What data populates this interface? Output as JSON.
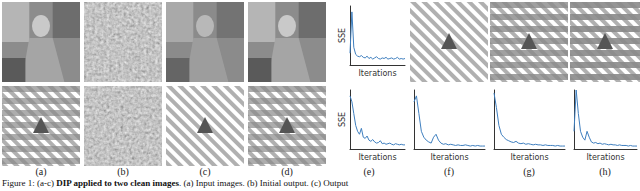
{
  "panel_labels": [
    "(a)",
    "(b)",
    "(c)",
    "(d)",
    "(e)",
    "(f)",
    "(g)",
    "(h)"
  ],
  "caption": {
    "lead": "Figure 1: (a-c) ",
    "bold": "DIP applied to two clean images",
    "rest": ". (a) Input images. (b) Initial output. (c) Output"
  },
  "chart_data": [
    {
      "type": "line",
      "xlabel": "Iterations",
      "ylabel": "SSE",
      "color": "#3f7fbf",
      "line_style": "solid",
      "tick_labels": false,
      "xlim": [
        0,
        29
      ],
      "ylim": [
        0,
        10
      ],
      "x": [
        0,
        1,
        2,
        3,
        4,
        5,
        6,
        7,
        8,
        9,
        10,
        11,
        12,
        13,
        14,
        15,
        16,
        17,
        18,
        19,
        20,
        21,
        22,
        23,
        24,
        25,
        26,
        27,
        28,
        29
      ],
      "values": [
        2,
        9,
        3,
        1.8,
        1.5,
        1.4,
        1.6,
        1.3,
        1.2,
        1.5,
        1.1,
        1.3,
        1.0,
        1.2,
        1.4,
        1.1,
        1.0,
        1.2,
        1.1,
        1.3,
        1.0,
        1.1,
        1.2,
        1.0,
        1.1,
        1.3,
        1.0,
        1.1,
        1.0,
        1.1
      ]
    },
    {
      "type": "line",
      "xlabel": "Iterations",
      "ylabel": "SSE",
      "color": "#3f7fbf",
      "line_style": "solid",
      "tick_labels": false,
      "xlim": [
        0,
        29
      ],
      "ylim": [
        0,
        10
      ],
      "x": [
        0,
        1,
        2,
        3,
        4,
        5,
        6,
        7,
        8,
        9,
        10,
        11,
        12,
        13,
        14,
        15,
        16,
        17,
        18,
        19,
        20,
        21,
        22,
        23,
        24,
        25,
        26,
        27,
        28,
        29
      ],
      "values": [
        9,
        8,
        6,
        4,
        3,
        2.5,
        3.5,
        2,
        1.8,
        2.2,
        1.5,
        1.3,
        1.6,
        1.2,
        1.0,
        1.1,
        1.4,
        0.9,
        1.0,
        0.8,
        0.9,
        1.0,
        0.8,
        0.7,
        0.9,
        0.8,
        0.7,
        0.8,
        0.7,
        0.7
      ]
    },
    {
      "type": "line",
      "xlabel": "Iterations",
      "color": "#3f7fbf",
      "line_style": "solid",
      "tick_labels": false,
      "xlim": [
        0,
        29
      ],
      "ylim": [
        0,
        10
      ],
      "x": [
        0,
        1,
        2,
        3,
        4,
        5,
        6,
        7,
        8,
        9,
        10,
        11,
        12,
        13,
        14,
        15,
        16,
        17,
        18,
        19,
        20,
        21,
        22,
        23,
        24,
        25,
        26,
        27,
        28,
        29
      ],
      "values": [
        8,
        9,
        6,
        3,
        2,
        1.5,
        1.2,
        1.0,
        2,
        2.5,
        1.5,
        1.0,
        0.8,
        0.9,
        0.7,
        0.8,
        0.7,
        0.6,
        0.7,
        0.6,
        0.6,
        0.7,
        0.6,
        0.5,
        0.6,
        0.5,
        0.6,
        0.5,
        0.5,
        0.5
      ]
    },
    {
      "type": "line",
      "xlabel": "Iterations",
      "color": "#3f7fbf",
      "line_style": "solid",
      "tick_labels": false,
      "xlim": [
        0,
        29
      ],
      "ylim": [
        0,
        10
      ],
      "x": [
        0,
        1,
        2,
        3,
        4,
        5,
        6,
        7,
        8,
        9,
        10,
        11,
        12,
        13,
        14,
        15,
        16,
        17,
        18,
        19,
        20,
        21,
        22,
        23,
        24,
        25,
        26,
        27,
        28,
        29
      ],
      "values": [
        9.5,
        7,
        4,
        2.5,
        2,
        1.6,
        1.4,
        1.2,
        1.1,
        1.3,
        1.0,
        0.9,
        1.0,
        0.8,
        0.9,
        0.8,
        0.7,
        0.8,
        0.7,
        0.7,
        0.6,
        0.7,
        0.6,
        0.6,
        0.6,
        0.5,
        0.6,
        0.5,
        0.5,
        0.5
      ]
    },
    {
      "type": "line",
      "xlabel": "Iterations",
      "color": "#3f7fbf",
      "line_style": "solid",
      "tick_labels": false,
      "xlim": [
        0,
        29
      ],
      "ylim": [
        0,
        10
      ],
      "x": [
        0,
        1,
        2,
        3,
        4,
        5,
        6,
        7,
        8,
        9,
        10,
        11,
        12,
        13,
        14,
        15,
        16,
        17,
        18,
        19,
        20,
        21,
        22,
        23,
        24,
        25,
        26,
        27,
        28,
        29
      ],
      "values": [
        3,
        10,
        6,
        3,
        2,
        1.5,
        3,
        2,
        1.2,
        1.0,
        1.1,
        0.9,
        1.0,
        0.8,
        0.9,
        0.8,
        0.7,
        0.8,
        0.7,
        0.7,
        0.6,
        0.7,
        0.6,
        0.6,
        0.6,
        0.5,
        0.6,
        0.5,
        0.5,
        0.5
      ]
    }
  ]
}
